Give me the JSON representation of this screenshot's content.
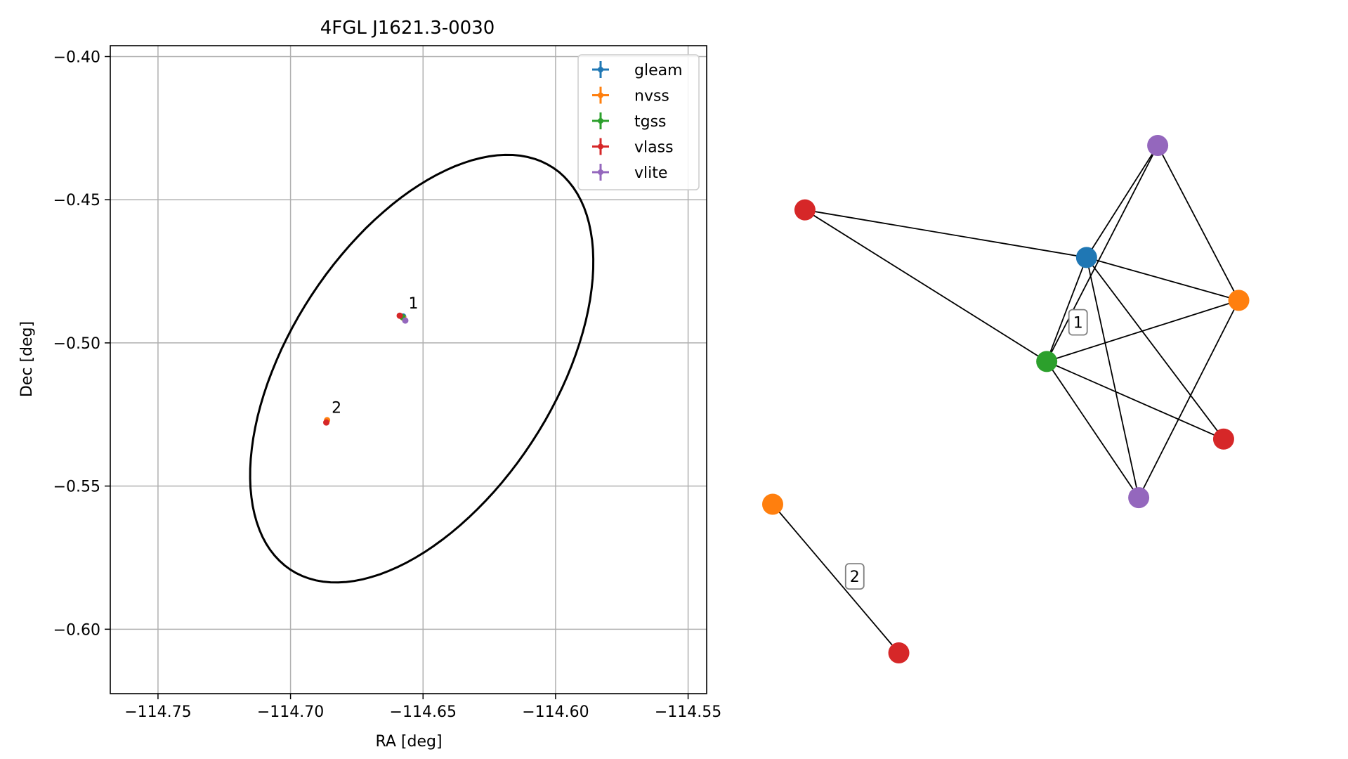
{
  "chart_data": [
    {
      "type": "scatter",
      "title": "4FGL J1621.3-0030",
      "xlabel": "RA [deg]",
      "ylabel": "Dec [deg]",
      "xlim": [
        -114.768,
        -114.543
      ],
      "ylim": [
        -0.6225,
        -0.3962
      ],
      "xticks": [
        -114.75,
        -114.7,
        -114.65,
        -114.6,
        -114.55
      ],
      "xtick_labels": [
        "−114.75",
        "−114.70",
        "−114.65",
        "−114.60",
        "−114.55"
      ],
      "yticks": [
        -0.4,
        -0.45,
        -0.5,
        -0.55,
        -0.6
      ],
      "ytick_labels": [
        "−0.40",
        "−0.45",
        "−0.50",
        "−0.55",
        "−0.60"
      ],
      "grid": true,
      "legend_position": "top-right",
      "series": [
        {
          "name": "gleam",
          "color": "#1f77b4",
          "points": [
            {
              "x": -114.6575,
              "y": -0.4908
            }
          ]
        },
        {
          "name": "nvss",
          "color": "#ff7f0e",
          "points": [
            {
              "x": -114.6575,
              "y": -0.4912
            },
            {
              "x": -114.6862,
              "y": -0.527
            }
          ]
        },
        {
          "name": "tgss",
          "color": "#2ca02c",
          "points": [
            {
              "x": -114.6578,
              "y": -0.491
            }
          ]
        },
        {
          "name": "vlass",
          "color": "#d62728",
          "points": [
            {
              "x": -114.6588,
              "y": -0.4905
            },
            {
              "x": -114.6865,
              "y": -0.5278
            }
          ]
        },
        {
          "name": "vlite",
          "color": "#9467bd",
          "points": [
            {
              "x": -114.6567,
              "y": -0.4922
            }
          ]
        }
      ],
      "group_labels": [
        {
          "text": "1",
          "x": -114.6555,
          "y": -0.488
        },
        {
          "text": "2",
          "x": -114.6845,
          "y": -0.5245
        }
      ],
      "error_ellipse": {
        "center_x": -114.6505,
        "center_y": -0.509,
        "semi_major": 0.086,
        "semi_minor": 0.0487,
        "rotation_deg": 53.0
      }
    },
    {
      "type": "network",
      "nodes": [
        {
          "id": "vlass_a",
          "survey": "vlass",
          "color": "#d62728",
          "x": 0.068,
          "y": 0.807
        },
        {
          "id": "vlite_a",
          "survey": "vlite",
          "color": "#9467bd",
          "x": 0.812,
          "y": 0.983
        },
        {
          "id": "gleam_a",
          "survey": "gleam",
          "color": "#1f77b4",
          "x": 0.662,
          "y": 0.677
        },
        {
          "id": "nvss_a",
          "survey": "nvss",
          "color": "#ff7f0e",
          "x": 0.983,
          "y": 0.56
        },
        {
          "id": "tgss_a",
          "survey": "tgss",
          "color": "#2ca02c",
          "x": 0.578,
          "y": 0.393
        },
        {
          "id": "vlass_b",
          "survey": "vlass",
          "color": "#d62728",
          "x": 0.951,
          "y": 0.181
        },
        {
          "id": "vlite_b",
          "survey": "vlite",
          "color": "#9467bd",
          "x": 0.772,
          "y": 0.021
        },
        {
          "id": "nvss_c",
          "survey": "nvss",
          "color": "#ff7f0e",
          "x": 0.0,
          "y": 0.003
        },
        {
          "id": "vlass_c",
          "survey": "vlass",
          "color": "#d62728",
          "x": 0.266,
          "y": -0.403
        }
      ],
      "edges": [
        [
          "vlass_a",
          "gleam_a"
        ],
        [
          "vlass_a",
          "tgss_a"
        ],
        [
          "vlite_a",
          "gleam_a"
        ],
        [
          "vlite_a",
          "tgss_a"
        ],
        [
          "vlite_a",
          "nvss_a"
        ],
        [
          "gleam_a",
          "nvss_a"
        ],
        [
          "gleam_a",
          "tgss_a"
        ],
        [
          "gleam_a",
          "vlass_b"
        ],
        [
          "gleam_a",
          "vlite_b"
        ],
        [
          "nvss_a",
          "tgss_a"
        ],
        [
          "nvss_a",
          "vlite_b"
        ],
        [
          "tgss_a",
          "vlass_b"
        ],
        [
          "tgss_a",
          "vlite_b"
        ],
        [
          "nvss_c",
          "vlass_c"
        ]
      ],
      "group_labels": [
        {
          "text": "1",
          "x": 0.644,
          "y": 0.5
        },
        {
          "text": "2",
          "x": 0.173,
          "y": -0.194
        }
      ]
    }
  ]
}
